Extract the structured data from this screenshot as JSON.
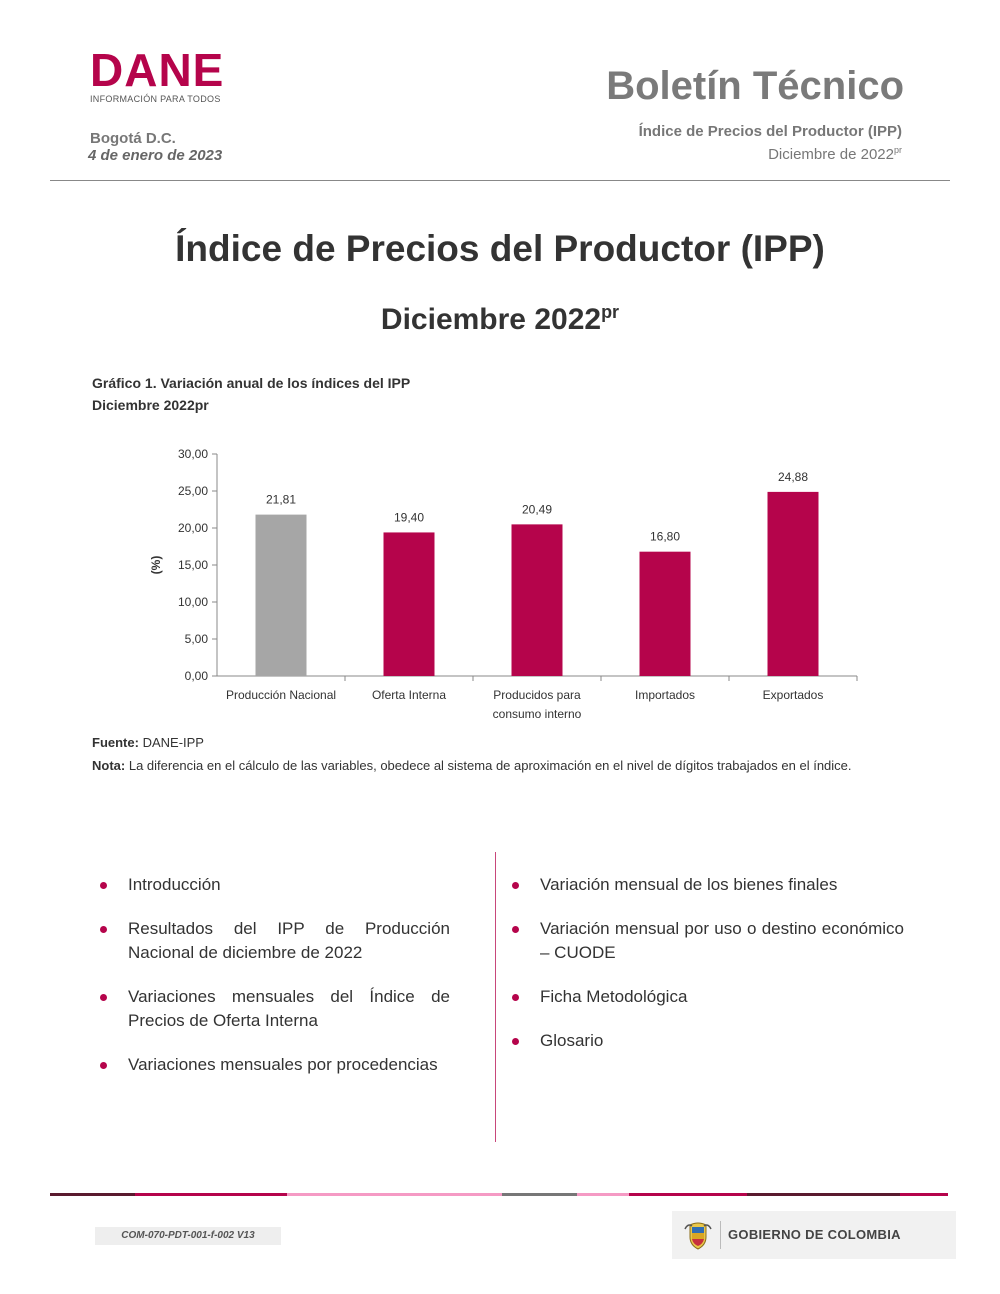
{
  "header": {
    "logo_word": "DANE",
    "logo_tagline": "INFORMACIÓN PARA TODOS",
    "city": "Bogotá D.C.",
    "date": "4 de enero de 2023",
    "bulletin_title": "Boletín Técnico",
    "bulletin_subtitle": "Índice de Precios del Productor (IPP)",
    "period": "Diciembre de 2022",
    "period_sup": "pr"
  },
  "title": {
    "main": "Índice de Precios del Productor (IPP)",
    "sub": "Diciembre 2022",
    "sub_sup": "pr"
  },
  "chart_caption": {
    "line1": "Gráfico 1. Variación anual de los índices del IPP",
    "line2": "Diciembre 2022pr"
  },
  "chart_data": {
    "type": "bar",
    "categories": [
      "Producción Nacional",
      "Oferta Interna",
      "Producidos para consumo interno",
      "Importados",
      "Exportados"
    ],
    "category_lines": [
      [
        "Producción Nacional"
      ],
      [
        "Oferta Interna"
      ],
      [
        "Producidos para",
        "consumo interno"
      ],
      [
        "Importados"
      ],
      [
        "Exportados"
      ]
    ],
    "values": [
      21.81,
      19.4,
      20.49,
      16.8,
      24.88
    ],
    "value_labels": [
      "21,81",
      "19,40",
      "20,49",
      "16,80",
      "24,88"
    ],
    "bar_colors": [
      "#a6a6a6",
      "#b5044b",
      "#b5044b",
      "#b5044b",
      "#b5044b"
    ],
    "ylabel": "(%)",
    "ylim": [
      0,
      30
    ],
    "yticks": [
      "0,00",
      "5,00",
      "10,00",
      "15,00",
      "20,00",
      "25,00",
      "30,00"
    ],
    "grid": false,
    "legend": "none"
  },
  "source": {
    "label": "Fuente:",
    "text": "DANE-IPP"
  },
  "note": {
    "label": "Nota:",
    "text": "La diferencia en el cálculo de las variables, obedece al sistema de aproximación en el nivel de dígitos trabajados en el índice."
  },
  "contents_left": [
    "Introducción",
    "Resultados del IPP de Producción Nacional de diciembre de 2022",
    "Variaciones mensuales del Índice de Precios de Oferta Interna",
    "Variaciones mensuales por procedencias"
  ],
  "contents_right": [
    "Variación mensual de los bienes finales",
    "Variación mensual por uso o destino económico – CUODE",
    "Ficha Metodológica",
    "Glosario"
  ],
  "footer": {
    "code": "COM-070-PDT-001-f-002 V13",
    "government": "GOBIERNO DE COLOMBIA",
    "bar_colors": [
      "#5a1a2e",
      "#b5044b",
      "#f59ac4",
      "#777777",
      "#f59ac4",
      "#b5044b",
      "#5a1a2e",
      "#b5044b"
    ],
    "accent": "#b5044b",
    "shield_icon": "colombia-coat-of-arms-icon"
  }
}
